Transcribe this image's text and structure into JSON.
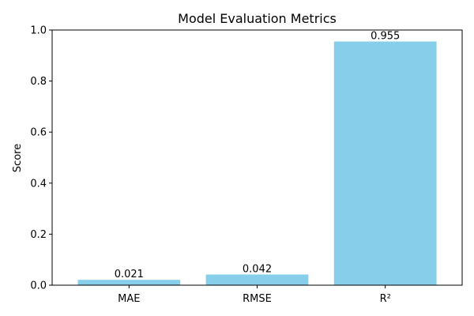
{
  "chart_data": {
    "type": "bar",
    "title": "Model Evaluation Metrics",
    "xlabel": "",
    "ylabel": "Score",
    "categories": [
      "MAE",
      "RMSE",
      "R²"
    ],
    "values": [
      0.021,
      0.042,
      0.955
    ],
    "value_labels": [
      "0.021",
      "0.042",
      "0.955"
    ],
    "ylim": [
      0,
      1.0
    ],
    "yticks": [
      0.0,
      0.2,
      0.4,
      0.6,
      0.8,
      1.0
    ],
    "ytick_labels": [
      "0.0",
      "0.2",
      "0.4",
      "0.6",
      "0.8",
      "1.0"
    ],
    "grid": false,
    "legend": "none",
    "bar_color": "#87CEEB"
  }
}
